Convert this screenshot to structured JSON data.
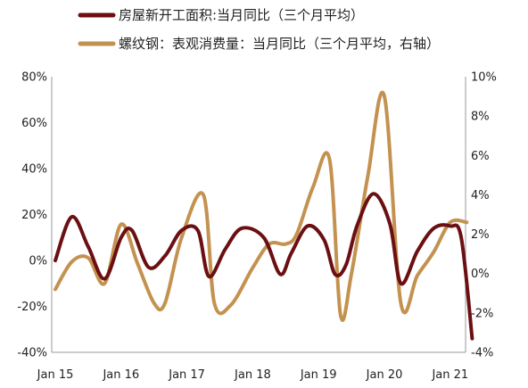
{
  "chart_data": {
    "type": "line",
    "title": "",
    "xlabel": "",
    "ylabel": "",
    "x_tick_labels": [
      "Jan 15",
      "Jan 16",
      "Jan 17",
      "Jan 18",
      "Jan 19",
      "Jan 20",
      "Jan 21"
    ],
    "x_range": [
      "2015-01",
      "2021-05"
    ],
    "y_left": {
      "range": [
        -40,
        80
      ],
      "ticks": [
        "80%",
        "60%",
        "40%",
        "20%",
        "0%",
        "-20%",
        "-40%"
      ],
      "tick_values": [
        80,
        60,
        40,
        20,
        0,
        -20,
        -40
      ]
    },
    "y_right": {
      "range": [
        -4,
        10
      ],
      "ticks": [
        "10%",
        "8%",
        "6%",
        "4%",
        "2%",
        "0%",
        "-2%",
        "-4%"
      ],
      "tick_values": [
        10,
        8,
        6,
        4,
        2,
        0,
        -2,
        -4
      ]
    },
    "grid": false,
    "legend_position": "top-left",
    "series": [
      {
        "name": "房屋新开工面积:当月同比（三个月平均）",
        "axis": "left",
        "color": "#6b0f12",
        "x": [
          "2015-01",
          "2015-04",
          "2015-07",
          "2015-10",
          "2016-01",
          "2016-03",
          "2016-06",
          "2016-09",
          "2016-12",
          "2017-03",
          "2017-05",
          "2017-08",
          "2017-11",
          "2018-03",
          "2018-06",
          "2018-08",
          "2018-11",
          "2019-02",
          "2019-04",
          "2019-06",
          "2019-08",
          "2019-11",
          "2020-02",
          "2020-04",
          "2020-07",
          "2020-10",
          "2021-01",
          "2021-03",
          "2021-05"
        ],
        "y": [
          0,
          19,
          6,
          -8,
          10,
          13,
          -3,
          2,
          13,
          13,
          -7,
          5,
          14,
          10,
          -6,
          3,
          15,
          9,
          -6,
          -2,
          15,
          29,
          16,
          -10,
          4,
          14,
          15,
          10,
          -34
        ]
      },
      {
        "name": "螺纹钢：表观消费量：当月同比（三个月平均，右轴）",
        "axis": "right",
        "color": "#c49250",
        "x": [
          "2015-01",
          "2015-04",
          "2015-07",
          "2015-10",
          "2016-01",
          "2016-04",
          "2016-07",
          "2016-09",
          "2016-12",
          "2017-04",
          "2017-06",
          "2017-09",
          "2018-01",
          "2018-04",
          "2018-07",
          "2018-09",
          "2018-12",
          "2019-03",
          "2019-05",
          "2019-07",
          "2019-10",
          "2020-01",
          "2020-04",
          "2020-07",
          "2020-10",
          "2021-01",
          "2021-04"
        ],
        "y": [
          -0.8,
          0.6,
          0.8,
          -0.5,
          2.5,
          0.5,
          -1.5,
          -1.5,
          1.8,
          4.0,
          -1.5,
          -1.6,
          0.3,
          1.5,
          1.5,
          2.0,
          4.4,
          5.8,
          -2.1,
          0.0,
          5.0,
          9.0,
          -1.5,
          -0.1,
          1.1,
          2.6,
          2.6
        ]
      }
    ]
  }
}
